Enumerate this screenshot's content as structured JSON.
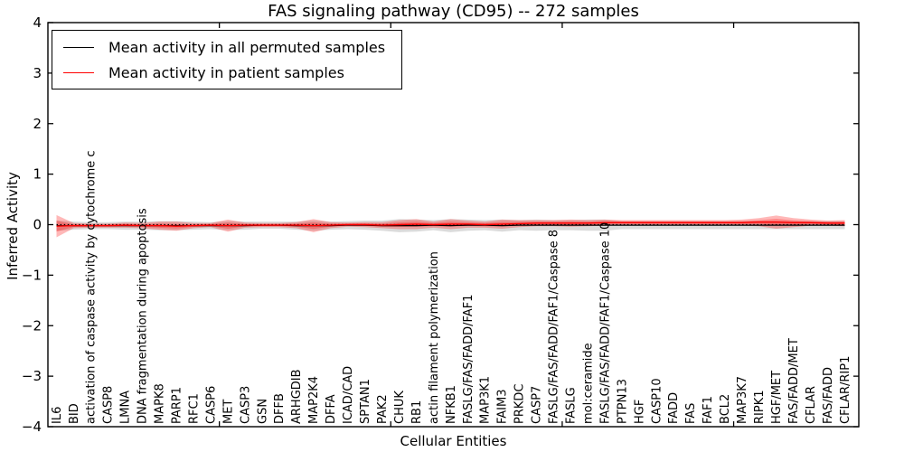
{
  "chart_data": {
    "type": "line",
    "title": "FAS signaling pathway (CD95) -- 272 samples",
    "xlabel": "Cellular Entities",
    "ylabel": "Inferred Activity",
    "ylim": [
      -4,
      4
    ],
    "yticks": [
      -4,
      -3,
      -2,
      -1,
      0,
      1,
      2,
      3,
      4
    ],
    "xticks_positions": [
      10,
      20,
      30,
      40
    ],
    "grid": false,
    "legend": {
      "position": "upper left",
      "entries": [
        {
          "label": "Mean activity in all permuted samples",
          "color": "#000000"
        },
        {
          "label": "Mean activity in patient samples",
          "color": "#ff0000"
        }
      ]
    },
    "categories": [
      "IL6",
      "BID",
      "activation of caspase activity by cytochrome c",
      "CASP8",
      "LMNA",
      "DNA fragmentation during apoptosis",
      "MAPK8",
      "PARP1",
      "RFC1",
      "CASP6",
      "MET",
      "CASP3",
      "GSN",
      "DFFB",
      "ARHGDIB",
      "MAP2K4",
      "DFFA",
      "ICAD/CAD",
      "SPTAN1",
      "PAK2",
      "CHUK",
      "RB1",
      "actin filament polymerization",
      "NFKB1",
      "FASLG/FAS/FADD/FAF1",
      "MAP3K1",
      "FAIM3",
      "PRKDC",
      "CASP7",
      "FASLG/FAS/FADD/FAF1/Caspase 8",
      "FASLG",
      "mol:ceramide",
      "FASLG/FAS/FADD/FAF1/Caspase 10",
      "PTPN13",
      "HGF",
      "CASP10",
      "FADD",
      "FAS",
      "FAF1",
      "BCL2",
      "MAP3K7",
      "RIPK1",
      "HGF/MET",
      "FAS/FADD/MET",
      "CFLAR",
      "FAS/FADD",
      "CFLAR/RIP1"
    ],
    "series": [
      {
        "name": "Mean activity in all permuted samples",
        "color": "#000000",
        "values": [
          -0.02,
          -0.02,
          -0.02,
          -0.02,
          -0.02,
          -0.02,
          -0.02,
          -0.02,
          -0.02,
          -0.02,
          -0.02,
          -0.02,
          -0.01,
          -0.01,
          -0.02,
          -0.02,
          -0.02,
          -0.01,
          -0.01,
          -0.02,
          -0.02,
          -0.02,
          -0.01,
          -0.02,
          -0.01,
          -0.01,
          -0.02,
          -0.01,
          -0.01,
          -0.01,
          -0.01,
          -0.01,
          -0.01,
          -0.01,
          -0.01,
          -0.01,
          -0.01,
          -0.01,
          -0.01,
          -0.01,
          -0.01,
          -0.01,
          -0.01,
          -0.01,
          -0.01,
          -0.01,
          -0.01
        ]
      },
      {
        "name": "Mean activity in patient samples",
        "color": "#ff0000",
        "values": [
          -0.03,
          -0.02,
          -0.02,
          -0.02,
          -0.01,
          -0.02,
          -0.02,
          -0.03,
          -0.02,
          -0.01,
          -0.02,
          -0.01,
          -0.01,
          -0.01,
          -0.01,
          -0.02,
          -0.01,
          0,
          0,
          -0.01,
          0,
          0.01,
          0,
          0.01,
          0.01,
          0,
          0.01,
          0.02,
          0.03,
          0.03,
          0.03,
          0.03,
          0.04,
          0.04,
          0.04,
          0.04,
          0.04,
          0.04,
          0.04,
          0.04,
          0.04,
          0.05,
          0.05,
          0.04,
          0.04,
          0.03,
          0.03
        ]
      }
    ],
    "bands": [
      {
        "name": "permuted-samples-range",
        "color": "#000000",
        "alpha": 0.14,
        "center_series": 0,
        "half_widths": [
          0.1,
          0.08,
          0.07,
          0.07,
          0.08,
          0.08,
          0.09,
          0.09,
          0.08,
          0.07,
          0.09,
          0.08,
          0.07,
          0.07,
          0.08,
          0.1,
          0.08,
          0.08,
          0.09,
          0.1,
          0.13,
          0.12,
          0.1,
          0.13,
          0.11,
          0.1,
          0.12,
          0.1,
          0.11,
          0.1,
          0.1,
          0.11,
          0.11,
          0.08,
          0.08,
          0.08,
          0.08,
          0.08,
          0.08,
          0.08,
          0.08,
          0.08,
          0.08,
          0.08,
          0.08,
          0.08,
          0.08
        ]
      },
      {
        "name": "patient-samples-range",
        "color": "#ff0000",
        "alpha": 0.28,
        "center_series": 1,
        "half_widths": [
          0.22,
          0.05,
          0.04,
          0.04,
          0.05,
          0.05,
          0.08,
          0.09,
          0.05,
          0.04,
          0.12,
          0.05,
          0.04,
          0.04,
          0.06,
          0.13,
          0.06,
          0.04,
          0.05,
          0.06,
          0.09,
          0.1,
          0.06,
          0.1,
          0.07,
          0.06,
          0.09,
          0.07,
          0.06,
          0.06,
          0.07,
          0.06,
          0.06,
          0.05,
          0.05,
          0.05,
          0.05,
          0.05,
          0.05,
          0.05,
          0.06,
          0.08,
          0.13,
          0.09,
          0.06,
          0.05,
          0.06
        ]
      }
    ],
    "zero_line": {
      "y": 0,
      "style": "dotted",
      "color": "#000000"
    }
  }
}
